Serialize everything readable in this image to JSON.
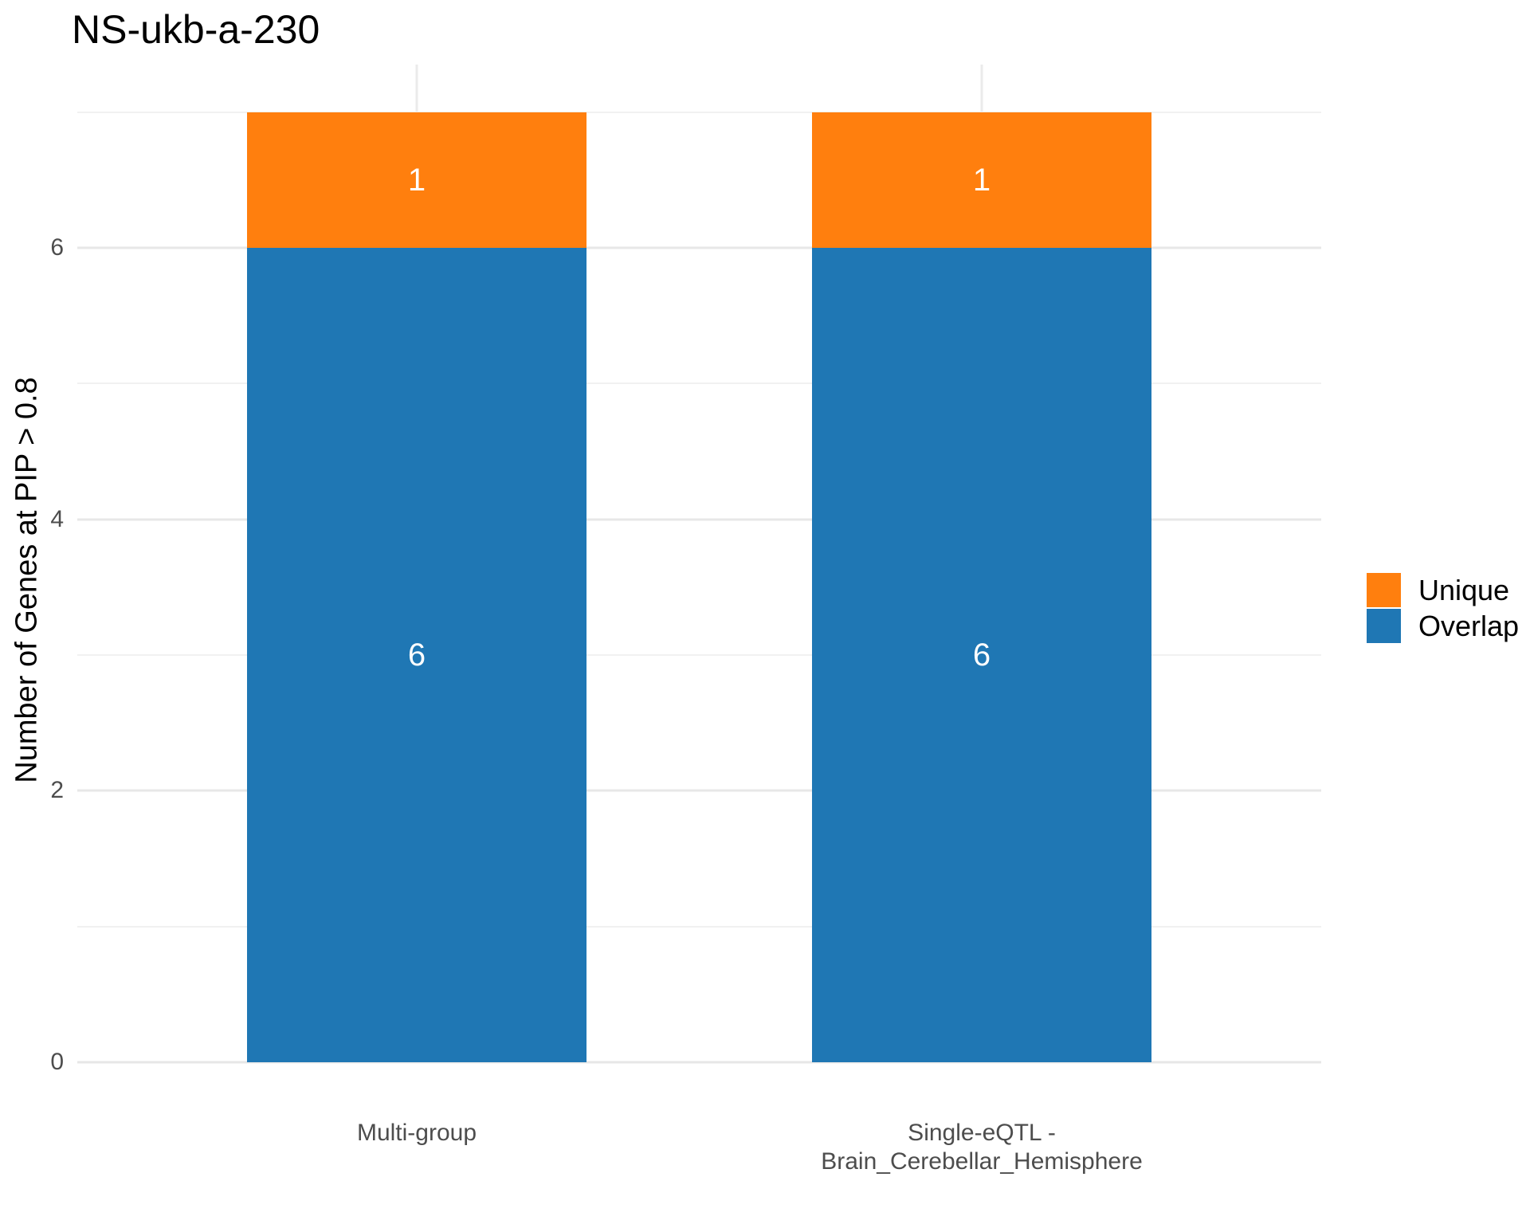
{
  "title": "NS-ukb-a-230",
  "chart_data": {
    "type": "bar",
    "stacked": true,
    "title": "NS-ukb-a-230",
    "xlabel": "",
    "ylabel": "Number of Genes at PIP > 0.8",
    "categories": [
      "Multi-group",
      "Single-eQTL -\nBrain_Cerebellar_Hemisphere"
    ],
    "series": [
      {
        "name": "Overlap",
        "color": "#1F77B4",
        "values": [
          6,
          6
        ]
      },
      {
        "name": "Unique",
        "color": "#FF7F0E",
        "values": [
          1,
          1
        ]
      }
    ],
    "ylim": [
      0,
      7
    ],
    "yticks": [
      0,
      2,
      4,
      6
    ],
    "minor_gridlines": [
      1,
      3,
      5,
      7
    ],
    "grid": true,
    "legend": {
      "position": "right",
      "items": [
        {
          "label": "Unique",
          "color": "#FF7F0E"
        },
        {
          "label": "Overlap",
          "color": "#1F77B4"
        }
      ]
    },
    "bar_labels_shown": true,
    "colors": {
      "grid_major": "#E7E7E7",
      "grid_minor": "#F1F1F1",
      "axis_text": "#4D4D4D",
      "bar_label_text": "#FFFFFF"
    }
  }
}
